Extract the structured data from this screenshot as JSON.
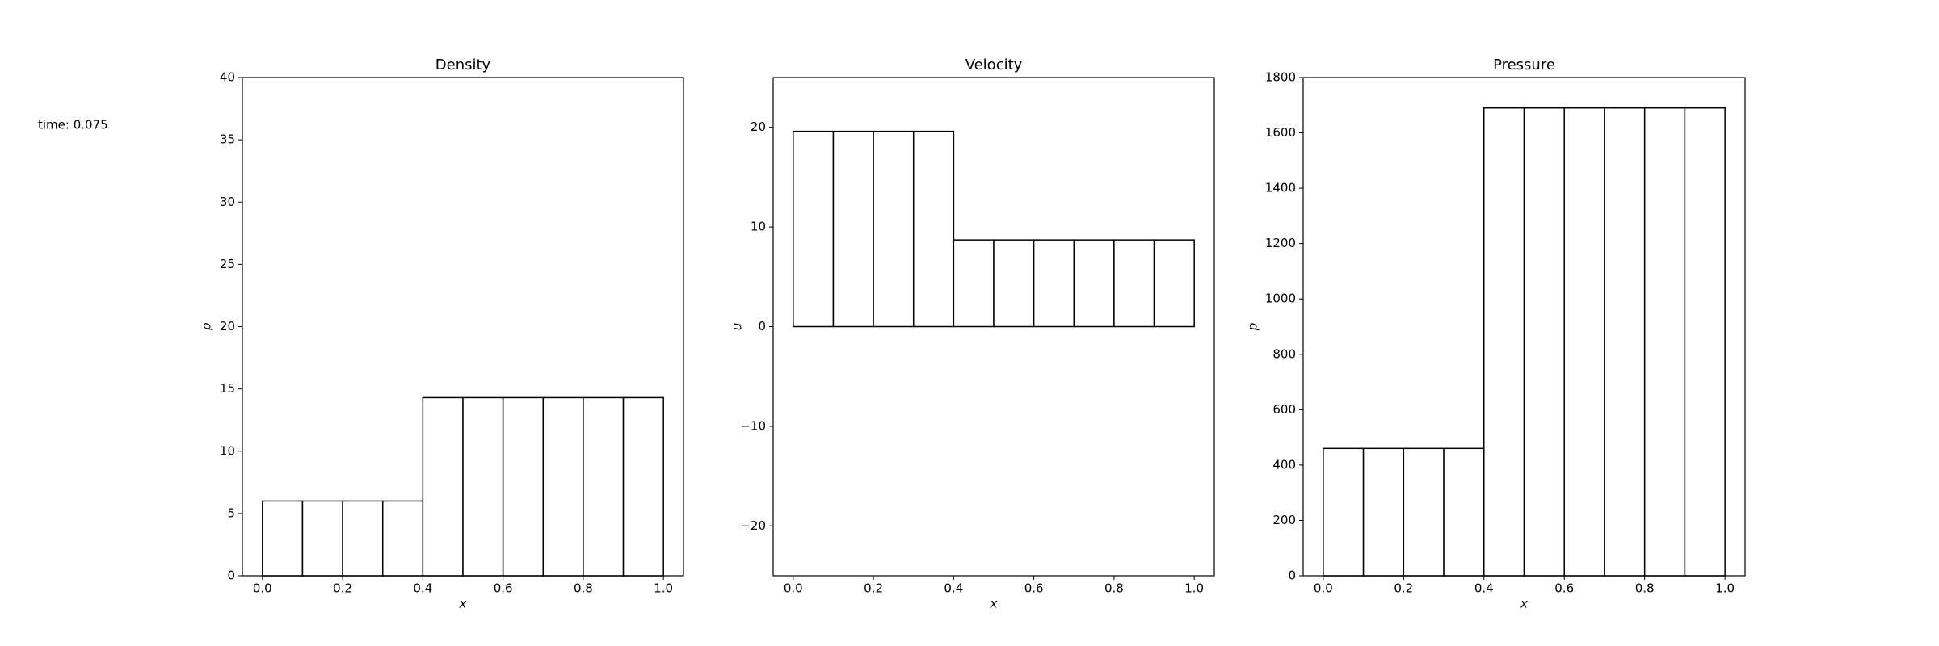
{
  "annotation": "time: 0.075",
  "chart_data": [
    {
      "type": "histogram",
      "title": "Density",
      "x_label": "x",
      "y_label": "ρ",
      "bins": [
        0,
        0.1,
        0.2,
        0.3,
        0.4,
        0.5,
        0.6,
        0.7,
        0.8,
        0.9,
        1.0
      ],
      "values": [
        6.0,
        6.0,
        6.0,
        6.0,
        14.3,
        14.3,
        14.3,
        14.3,
        14.3,
        14.3
      ],
      "color": "#ffffff",
      "edgecolor": "#000000",
      "xlim": [
        -0.05,
        1.05
      ],
      "xticks": [
        {
          "value": 0,
          "label": "0.0"
        },
        0.2,
        0.4,
        0.6,
        0.8,
        {
          "value": 1,
          "label": "1.0"
        }
      ],
      "ylim": [
        0,
        40
      ],
      "yticks": [
        0,
        5,
        10,
        15,
        20,
        25,
        30,
        35,
        40
      ]
    },
    {
      "type": "histogram",
      "title": "Velocity",
      "x_label": "x",
      "y_label": "u",
      "bins": [
        0,
        0.1,
        0.2,
        0.3,
        0.4,
        0.5,
        0.6,
        0.7,
        0.8,
        0.9,
        1.0
      ],
      "values": [
        19.6,
        19.6,
        19.6,
        19.6,
        8.7,
        8.7,
        8.7,
        8.7,
        8.7,
        8.7
      ],
      "color": "#ffffff",
      "edgecolor": "#000000",
      "xlim": [
        -0.05,
        1.05
      ],
      "xticks": [
        {
          "value": 0,
          "label": "0.0"
        },
        0.2,
        0.4,
        0.6,
        0.8,
        {
          "value": 1,
          "label": "1.0"
        }
      ],
      "ylim": [
        -25,
        25
      ],
      "yticks": [
        {
          "value": -20,
          "label": "−20"
        },
        {
          "value": -10,
          "label": "−10"
        },
        0,
        10,
        20
      ]
    },
    {
      "type": "histogram",
      "title": "Pressure",
      "x_label": "x",
      "y_label": "p",
      "bins": [
        0,
        0.1,
        0.2,
        0.3,
        0.4,
        0.5,
        0.6,
        0.7,
        0.8,
        0.9,
        1.0
      ],
      "values": [
        460,
        460,
        460,
        460,
        1690,
        1690,
        1690,
        1690,
        1690,
        1690
      ],
      "color": "#ffffff",
      "edgecolor": "#000000",
      "xlim": [
        -0.05,
        1.05
      ],
      "xticks": [
        {
          "value": 0,
          "label": "0.0"
        },
        0.2,
        0.4,
        0.6,
        0.8,
        {
          "value": 1,
          "label": "1.0"
        }
      ],
      "ylim": [
        0,
        1800
      ],
      "yticks": [
        0,
        200,
        400,
        600,
        800,
        1000,
        1200,
        1400,
        1600,
        1800
      ]
    }
  ]
}
